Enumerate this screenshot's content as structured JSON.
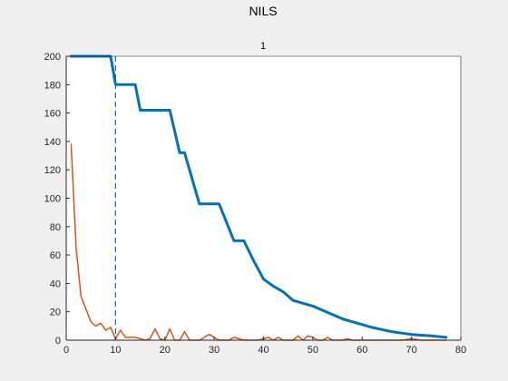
{
  "window": {
    "title": "NILS"
  },
  "chart_data": {
    "type": "line",
    "title": "1",
    "xlabel": "",
    "ylabel": "",
    "xlim": [
      0,
      80
    ],
    "ylim": [
      0,
      200
    ],
    "xticks": [
      0,
      10,
      20,
      30,
      40,
      50,
      60,
      70,
      80
    ],
    "yticks": [
      0,
      20,
      40,
      60,
      80,
      100,
      120,
      140,
      160,
      180,
      200
    ],
    "grid": false,
    "legend": "none",
    "vline": {
      "x": 10,
      "style": "dashed",
      "color": "#0072bd"
    },
    "series": [
      {
        "color": "#0072bd",
        "width": 3,
        "x": [
          1,
          9,
          9.5,
          10,
          14,
          15,
          21,
          23,
          24,
          27,
          31,
          34,
          36,
          38,
          40,
          42,
          44,
          46,
          48,
          50,
          52,
          54,
          56,
          58,
          60,
          62,
          64,
          66,
          68,
          70,
          72,
          74,
          77
        ],
        "y": [
          200,
          200,
          190,
          180,
          180,
          162,
          162,
          132,
          132,
          96,
          96,
          70,
          70,
          56,
          43,
          38,
          34,
          28,
          26,
          24,
          21,
          18,
          15,
          13,
          11,
          9,
          7.5,
          6,
          5,
          4,
          3.5,
          3,
          2
        ]
      },
      {
        "color": "#d95319",
        "width": 1.5,
        "x": [
          1,
          2,
          3,
          4,
          5,
          6,
          7,
          8,
          9,
          10,
          11,
          12,
          13,
          14,
          15,
          16,
          17,
          18,
          19,
          20,
          21,
          22,
          23,
          24,
          25,
          26,
          27,
          28,
          29,
          30,
          31,
          32,
          33,
          34,
          35,
          36,
          37,
          38,
          39,
          40,
          41,
          42,
          43,
          44,
          45,
          46,
          47,
          48,
          49,
          50,
          51,
          52,
          53,
          54,
          55,
          56,
          57,
          58,
          60,
          62,
          64,
          66,
          68,
          70,
          72,
          74,
          77
        ],
        "y": [
          138,
          65,
          31,
          22,
          13,
          10,
          12,
          7,
          9,
          1,
          7,
          2,
          2,
          2,
          1,
          0,
          1,
          8,
          1,
          0,
          8,
          0,
          0,
          6,
          0,
          0,
          0,
          2,
          4,
          2,
          0,
          0,
          0,
          2,
          1,
          0,
          0,
          0,
          0,
          1,
          2,
          0,
          2,
          0,
          0,
          0,
          3,
          0,
          3,
          2,
          0,
          0,
          2,
          0,
          0,
          0,
          1,
          0,
          0,
          0,
          0,
          0,
          0,
          1,
          0,
          0,
          0
        ]
      }
    ]
  }
}
